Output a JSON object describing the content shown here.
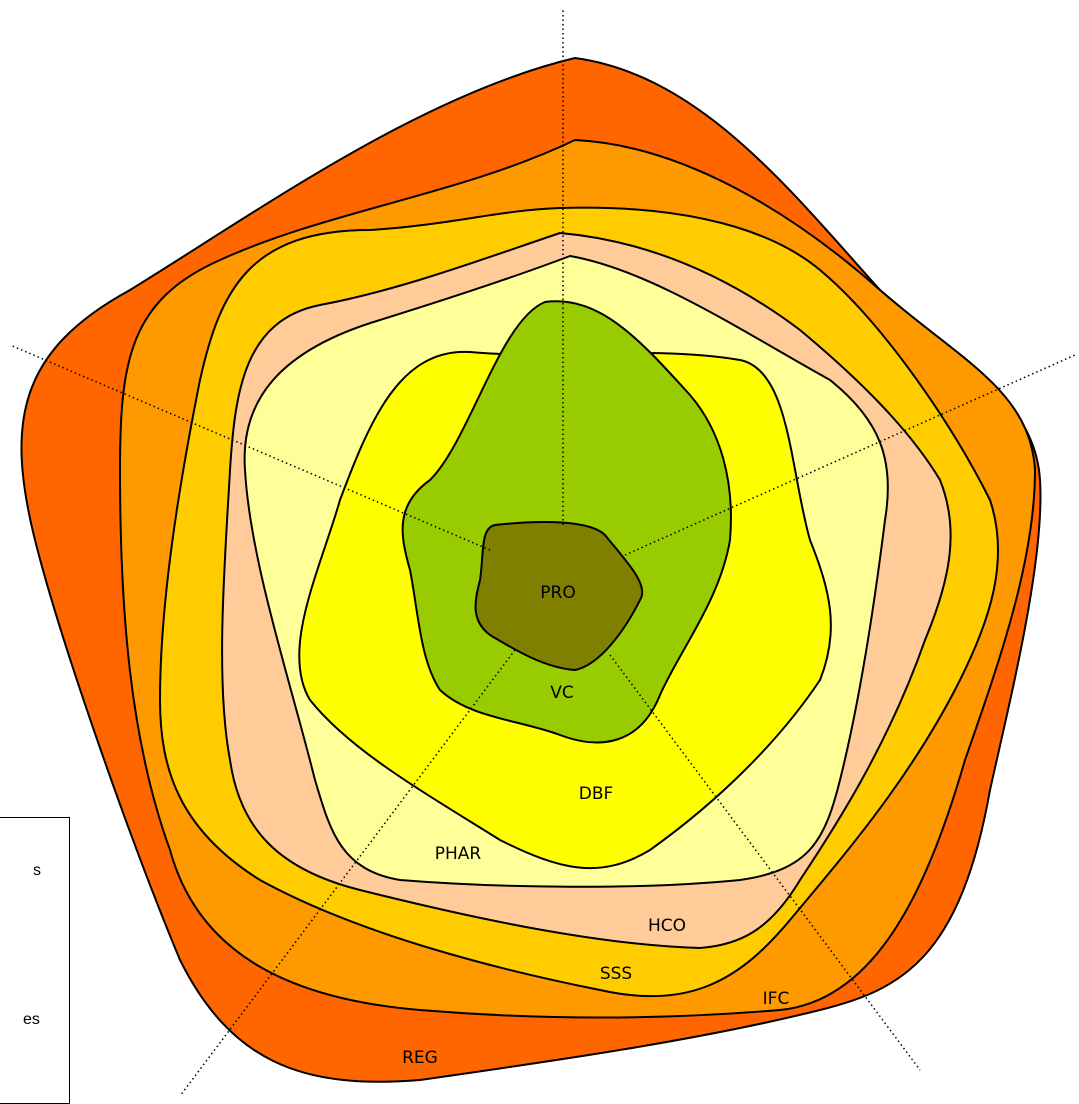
{
  "diagram": {
    "layers": [
      {
        "label": "REG",
        "color": "#ff6600"
      },
      {
        "label": "IFC",
        "color": "#ff9900"
      },
      {
        "label": "SSS",
        "color": "#ffcc00"
      },
      {
        "label": "HCO",
        "color": "#ffcc99"
      },
      {
        "label": "PHAR",
        "color": "#ffff99"
      },
      {
        "label": "DBF",
        "color": "#ffff00"
      },
      {
        "label": "VC",
        "color": "#99cc00"
      },
      {
        "label": "PRO",
        "color": "#808000"
      }
    ]
  },
  "legend": {
    "items": [
      {
        "text": "s"
      },
      {
        "text": "es"
      }
    ]
  }
}
